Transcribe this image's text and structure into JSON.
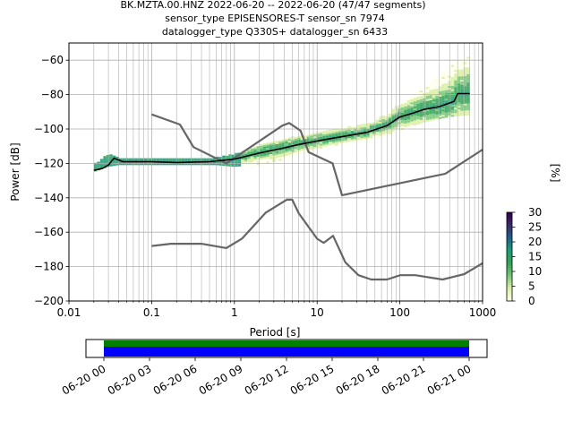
{
  "chart_data": {
    "type": "heatmap",
    "title_lines": [
      "BK.MZTA.00.HNZ   2022-06-20 -- 2022-06-20  (47/47 segments)",
      "sensor_type EPISENSORES-T sensor_sn 7974",
      "datalogger_type Q330S+ datalogger_sn 6433"
    ],
    "xlabel": "Period [s]",
    "ylabel": "Power [dB]",
    "xscale": "log",
    "xlim": [
      0.01,
      1000
    ],
    "ylim": [
      -200,
      -50
    ],
    "grid": true,
    "x_ticks": [
      {
        "value": 0.01,
        "label": "0.01"
      },
      {
        "value": 0.1,
        "label": "0.1"
      },
      {
        "value": 1,
        "label": "1"
      },
      {
        "value": 10,
        "label": "10"
      },
      {
        "value": 100,
        "label": "100"
      },
      {
        "value": 1000,
        "label": "1000"
      }
    ],
    "y_ticks": [
      {
        "value": -60,
        "label": "−60"
      },
      {
        "value": -80,
        "label": "−80"
      },
      {
        "value": -100,
        "label": "−100"
      },
      {
        "value": -120,
        "label": "−120"
      },
      {
        "value": -140,
        "label": "−140"
      },
      {
        "value": -160,
        "label": "−160"
      },
      {
        "value": -180,
        "label": "−180"
      },
      {
        "value": -200,
        "label": "−200"
      }
    ],
    "nhnm": {
      "color": "#666666",
      "x": [
        0.1,
        0.22,
        0.32,
        0.8,
        3.8,
        4.6,
        6.3,
        7.9,
        15.4,
        20,
        354.8,
        1000
      ],
      "y": [
        -91.5,
        -97.4,
        -110.5,
        -120,
        -98,
        -96.5,
        -101,
        -113.5,
        -120,
        -138.5,
        -126,
        -112
      ]
    },
    "nlnm": {
      "color": "#666666",
      "x": [
        0.1,
        0.17,
        0.4,
        0.8,
        1.24,
        2.4,
        4.3,
        5,
        6,
        10,
        12,
        15.6,
        21.9,
        31.6,
        45,
        70,
        101,
        154,
        328,
        600,
        1000
      ],
      "y": [
        -168,
        -166.7,
        -166.7,
        -169.2,
        -163.7,
        -148.6,
        -141.1,
        -141.1,
        -149,
        -163.8,
        -166.2,
        -162.1,
        -177.5,
        -185,
        -187.5,
        -187.5,
        -185,
        -185,
        -187.5,
        -184.4,
        -178
      ]
    },
    "mean": {
      "color": "#000000",
      "x": [
        0.02,
        0.025,
        0.03,
        0.035,
        0.045,
        0.07,
        0.1,
        0.2,
        0.5,
        0.8,
        1,
        2,
        4,
        6,
        10,
        20,
        40,
        70,
        100,
        150,
        200,
        300,
        450,
        500,
        700
      ],
      "y": [
        -124,
        -123,
        -121,
        -117,
        -119,
        -119,
        -119,
        -119.5,
        -119,
        -118,
        -117.5,
        -114,
        -111,
        -109,
        -107,
        -104.5,
        -102,
        -98,
        -93,
        -90.5,
        -88.5,
        -87,
        -84,
        -79.5,
        -79.5
      ]
    },
    "density_band": {
      "x": [
        0.02,
        0.03,
        0.04,
        0.1,
        0.3,
        0.6,
        1,
        2,
        4,
        7,
        10,
        20,
        50,
        100,
        200,
        400,
        700
      ],
      "low": [
        -125,
        -122,
        -121,
        -121,
        -121,
        -121,
        -122,
        -121,
        -118,
        -114,
        -112,
        -109,
        -106,
        -101,
        -96,
        -93,
        -92
      ],
      "high": [
        -121,
        -115,
        -117,
        -117,
        -117,
        -117,
        -115,
        -110,
        -106,
        -104,
        -102,
        -99,
        -96,
        -86,
        -76,
        -64,
        -58
      ]
    },
    "colorbar": {
      "label": "[%]",
      "min": 0,
      "max": 30,
      "tick_labels": [
        "0",
        "5",
        "10",
        "15",
        "20",
        "25",
        "30"
      ],
      "colors": [
        "#ffffe5",
        "#d9f0a3",
        "#78c679",
        "#31a354",
        "#1b9e77",
        "#1f5f8b",
        "#3b2b6b",
        "#2d004b"
      ]
    },
    "timeline": {
      "tick_labels": [
        "06-20 00",
        "06-20 03",
        "06-20 06",
        "06-20 09",
        "06-20 12",
        "06-20 15",
        "06-20 18",
        "06-20 21",
        "06-21 00"
      ],
      "coverage_start": 0,
      "coverage_end": 1,
      "colors": {
        "data": "#0000ff",
        "gaps": "#008000"
      }
    }
  }
}
